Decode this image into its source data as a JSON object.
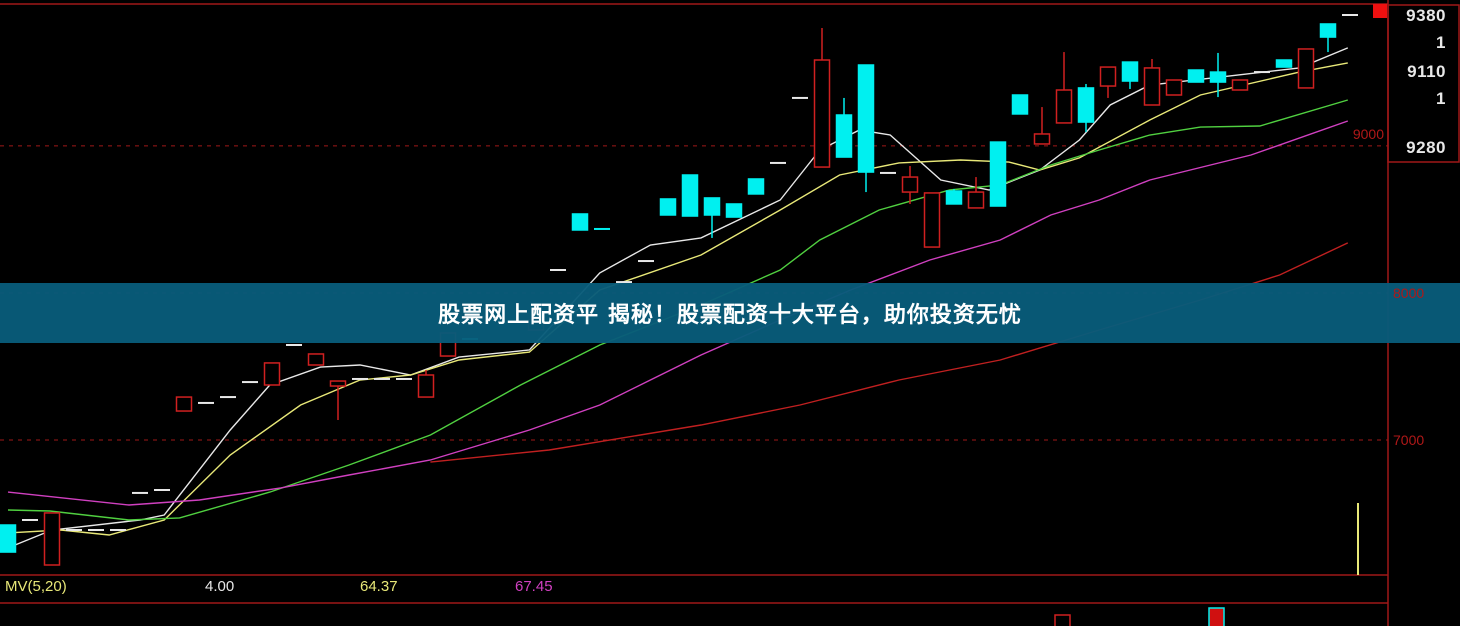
{
  "banner": {
    "title": "股票网上配资平 揭秘！股票配资十大平台，助你投资无忧"
  },
  "price_box": {
    "values": [
      "9380",
      "1",
      "9110",
      "1",
      "9280"
    ]
  },
  "indicator": {
    "name": "MV(5,20)",
    "v1": "4.00",
    "v2": "64.37",
    "v3": "67.45"
  },
  "colors": {
    "up": "#d02020",
    "down": "#00f0f0",
    "ma5": "#e8e8e8",
    "ma10": "#e8e878",
    "ma20": "#50d040",
    "ma60": "#d040c0",
    "ma_long": "#c02020",
    "grid": "#a01818",
    "banner": "#085c7a"
  },
  "chart_data": {
    "type": "candlestick",
    "y_axis": {
      "ticks": [
        "7000",
        "8000",
        "9000"
      ],
      "tick_values": [
        7000,
        8000,
        9000
      ],
      "range": [
        6100,
        9900
      ],
      "grid": "dashed"
    },
    "candles_ohlc": [
      [
        0,
        6422,
        6422,
        6238,
        6238
      ],
      [
        1,
        6456,
        6456,
        6456,
        6456,
        "w"
      ],
      [
        2,
        6150,
        6504,
        6150,
        6504
      ],
      [
        3,
        6388,
        6388,
        6388,
        6388,
        "w"
      ],
      [
        4,
        6388,
        6388,
        6388,
        6388,
        "w"
      ],
      [
        5,
        6388,
        6388,
        6388,
        6388,
        "w"
      ],
      [
        6,
        6640,
        6640,
        6640,
        6640,
        "w"
      ],
      [
        7,
        6660,
        6660,
        6660,
        6660,
        "w"
      ],
      [
        8,
        7197,
        7292,
        7197,
        7292
      ],
      [
        9,
        7252,
        7252,
        7252,
        7252,
        "w"
      ],
      [
        10,
        7292,
        7292,
        7292,
        7292,
        "w"
      ],
      [
        11,
        7394,
        7394,
        7394,
        7394,
        "w"
      ],
      [
        12,
        7374,
        7524,
        7374,
        7524
      ],
      [
        13,
        7646,
        7646,
        7646,
        7646,
        "w"
      ],
      [
        14,
        7510,
        7585,
        7510,
        7585
      ],
      [
        15,
        7367,
        7401,
        7136,
        7401
      ],
      [
        16,
        7415,
        7415,
        7415,
        7415,
        "w"
      ],
      [
        17,
        7415,
        7415,
        7415,
        7415,
        "w"
      ],
      [
        18,
        7415,
        7415,
        7415,
        7415,
        "w"
      ],
      [
        19,
        7292,
        7476,
        7292,
        7442
      ],
      [
        20,
        7571,
        7728,
        7571,
        7728
      ],
      [
        21,
        7687,
        7687,
        7687,
        7687,
        "c"
      ],
      [
        24,
        7748,
        7816,
        7748,
        7816
      ],
      [
        25,
        8156,
        8156,
        8156,
        8156,
        "w"
      ],
      [
        26,
        8537,
        8537,
        8428,
        8428
      ],
      [
        27,
        8435,
        8435,
        8435,
        8435,
        "c"
      ],
      [
        28,
        8074,
        8074,
        8074,
        8074,
        "w"
      ],
      [
        29,
        8217,
        8217,
        8217,
        8217,
        "w"
      ],
      [
        30,
        8639,
        8639,
        8530,
        8530
      ],
      [
        31,
        8802,
        8802,
        8523,
        8523
      ],
      [
        32,
        8646,
        8646,
        8374,
        8530
      ],
      [
        33,
        8605,
        8605,
        8516,
        8516
      ],
      [
        34,
        8775,
        8775,
        8673,
        8673
      ],
      [
        35,
        8884,
        8884,
        8884,
        8884,
        "w"
      ],
      [
        36,
        9326,
        9326,
        9326,
        9326,
        "w"
      ],
      [
        37,
        8856,
        9802,
        8856,
        9584
      ],
      [
        38,
        9210,
        9326,
        8924,
        8924
      ],
      [
        39,
        9550,
        9550,
        8686,
        8822
      ],
      [
        40,
        8816,
        8816,
        8816,
        8816,
        "w"
      ],
      [
        41,
        8686,
        8863,
        8605,
        8788
      ],
      [
        42,
        8312,
        8680,
        8312,
        8680
      ],
      [
        43,
        8693,
        8707,
        8605,
        8605
      ],
      [
        44,
        8578,
        8788,
        8578,
        8686
      ],
      [
        45,
        9026,
        9026,
        8591,
        8591
      ],
      [
        46,
        9346,
        9346,
        9217,
        9217
      ],
      [
        47,
        9013,
        9264,
        9013,
        9081
      ],
      [
        48,
        9156,
        9638,
        9156,
        9380
      ],
      [
        49,
        9394,
        9421,
        9094,
        9162
      ],
      [
        50,
        9407,
        9536,
        9326,
        9536
      ],
      [
        51,
        9570,
        9570,
        9387,
        9441
      ],
      [
        52,
        9278,
        9591,
        9278,
        9530
      ],
      [
        53,
        9346,
        9448,
        9346,
        9448
      ],
      [
        54,
        9516,
        9516,
        9434,
        9434
      ],
      [
        55,
        9502,
        9632,
        9332,
        9434
      ],
      [
        56,
        9380,
        9448,
        9380,
        9448
      ],
      [
        57,
        9502,
        9502,
        9502,
        9502,
        "w"
      ],
      [
        58,
        9584,
        9584,
        9536,
        9536
      ],
      [
        59,
        9394,
        9659,
        9394,
        9659
      ],
      [
        60,
        9829,
        9829,
        9638,
        9740
      ],
      [
        61,
        9890,
        9890,
        9890,
        9890,
        "w"
      ]
    ],
    "moving_averages": [
      {
        "key": "ma5",
        "points": [
          [
            0,
            6266
          ],
          [
            2,
            6388
          ],
          [
            6,
            6456
          ],
          [
            7.1,
            6490
          ],
          [
            10.1,
            7068
          ],
          [
            11.9,
            7374
          ],
          [
            14.2,
            7496
          ],
          [
            16,
            7510
          ],
          [
            18.3,
            7442
          ],
          [
            20.5,
            7564
          ],
          [
            23.7,
            7612
          ],
          [
            26.9,
            8136
          ],
          [
            29.2,
            8326
          ],
          [
            31.5,
            8374
          ],
          [
            35.1,
            8632
          ],
          [
            36.9,
            8972
          ],
          [
            38.7,
            9108
          ],
          [
            40.1,
            9074
          ],
          [
            42.4,
            8768
          ],
          [
            44.6,
            8700
          ],
          [
            46.9,
            8836
          ],
          [
            48.7,
            9040
          ],
          [
            50.1,
            9278
          ],
          [
            51.9,
            9414
          ],
          [
            55.1,
            9468
          ],
          [
            58.7,
            9530
          ],
          [
            60.9,
            9666
          ]
        ]
      },
      {
        "key": "ma10",
        "points": [
          [
            0,
            6368
          ],
          [
            2.4,
            6388
          ],
          [
            4.6,
            6354
          ],
          [
            7.1,
            6456
          ],
          [
            10.1,
            6898
          ],
          [
            13.3,
            7238
          ],
          [
            16,
            7408
          ],
          [
            18.3,
            7442
          ],
          [
            20.5,
            7544
          ],
          [
            23.7,
            7598
          ],
          [
            26.9,
            8020
          ],
          [
            31.5,
            8258
          ],
          [
            35.1,
            8564
          ],
          [
            37.8,
            8802
          ],
          [
            40.5,
            8884
          ],
          [
            43.3,
            8904
          ],
          [
            45.5,
            8890
          ],
          [
            46.9,
            8836
          ],
          [
            48.7,
            8918
          ],
          [
            51.9,
            9176
          ],
          [
            54.2,
            9346
          ],
          [
            58.7,
            9502
          ],
          [
            60.9,
            9564
          ]
        ]
      },
      {
        "key": "ma20",
        "points": [
          [
            0,
            6524
          ],
          [
            1.9,
            6517
          ],
          [
            5.5,
            6456
          ],
          [
            7.8,
            6470
          ],
          [
            11.9,
            6646
          ],
          [
            15.5,
            6830
          ],
          [
            19.2,
            7034
          ],
          [
            23.3,
            7374
          ],
          [
            26.9,
            7646
          ],
          [
            31.5,
            7918
          ],
          [
            35.1,
            8156
          ],
          [
            36.9,
            8360
          ],
          [
            39.6,
            8564
          ],
          [
            42.8,
            8700
          ],
          [
            45.1,
            8734
          ],
          [
            47.4,
            8870
          ],
          [
            49.6,
            8972
          ],
          [
            51.9,
            9074
          ],
          [
            54.2,
            9128
          ],
          [
            56.9,
            9135
          ],
          [
            60.9,
            9312
          ]
        ]
      },
      {
        "key": "ma60",
        "points": [
          [
            0,
            6646
          ],
          [
            5.5,
            6558
          ],
          [
            8.7,
            6592
          ],
          [
            12.4,
            6674
          ],
          [
            15.5,
            6762
          ],
          [
            19.2,
            6864
          ],
          [
            23.7,
            7068
          ],
          [
            26.9,
            7238
          ],
          [
            31.5,
            7578
          ],
          [
            35.1,
            7816
          ],
          [
            38.3,
            8020
          ],
          [
            41.9,
            8224
          ],
          [
            45.1,
            8360
          ],
          [
            47.4,
            8530
          ],
          [
            49.6,
            8632
          ],
          [
            51.9,
            8768
          ],
          [
            56.5,
            8938
          ],
          [
            60.9,
            9169
          ]
        ]
      },
      {
        "key": "ma_long",
        "points": [
          [
            19.2,
            6850
          ],
          [
            24.6,
            6932
          ],
          [
            31.5,
            7102
          ],
          [
            36,
            7238
          ],
          [
            40.5,
            7408
          ],
          [
            45.1,
            7544
          ],
          [
            49.6,
            7748
          ],
          [
            54.2,
            7952
          ],
          [
            57.8,
            8122
          ],
          [
            60.9,
            8340
          ]
        ]
      }
    ]
  }
}
